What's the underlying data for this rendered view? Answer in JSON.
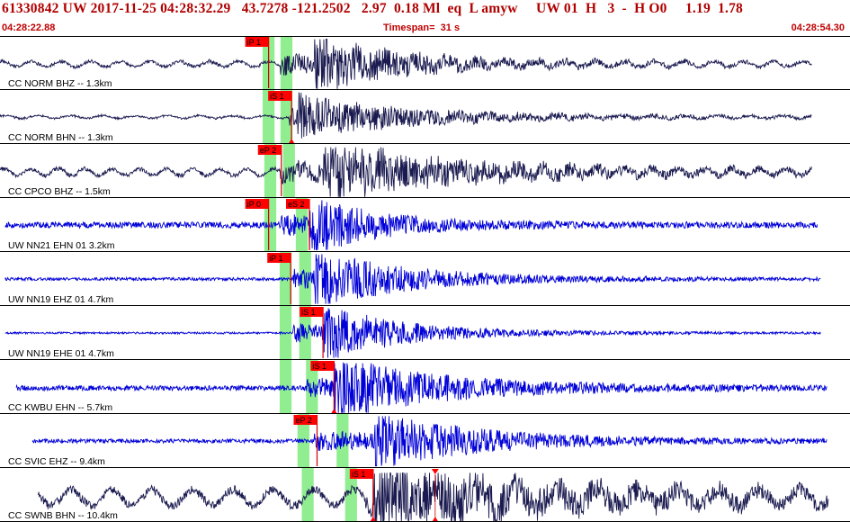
{
  "header": {
    "title": "61330842 UW 2017-11-25 04:28:32.29   43.7278 -121.2502   2.97  0.18 Ml  eq  L amyw     UW 01  H   3  -  H O0     1.19  1.78",
    "start_time": "04:28:22.88",
    "timespan": "Timespan=  31 s",
    "end_time": "04:28:54.30"
  },
  "colors": {
    "trace_dark": "#1a1a50",
    "trace_blue": "#0000d8",
    "pick_flag": "#ff0000",
    "pick_line": "#cc0000",
    "window": "#90ee90",
    "title_text": "#b00000"
  },
  "traces": [
    {
      "label": "CC NORM BHZ -- 1.3km",
      "color": "dark",
      "picks": [
        {
          "label": "iP 1",
          "pos": 0.316
        }
      ],
      "windows": [
        [
          0.309,
          0.323
        ],
        [
          0.33,
          0.344
        ]
      ],
      "seed": 11,
      "start": 0.0,
      "end": 0.955,
      "onset": 0.33,
      "s_onset": 0.37,
      "noise": 0.12,
      "amp": 0.9,
      "decay": 0.012,
      "period": 55,
      "mid": 0.52
    },
    {
      "label": "CC NORM BHN -- 1.3km",
      "color": "dark",
      "picks": [
        {
          "label": "iS 1",
          "pos": 0.343,
          "marker": true
        }
      ],
      "windows": [
        [
          0.309,
          0.323
        ],
        [
          0.33,
          0.344
        ]
      ],
      "seed": 23,
      "start": 0.0,
      "end": 0.955,
      "onset": 0.34,
      "s_onset": 0.35,
      "noise": 0.06,
      "amp": 0.6,
      "decay": 0.01,
      "period": 60,
      "mid": 0.5
    },
    {
      "label": "CC CPCO BHZ -- 1.5km",
      "color": "dark",
      "picks": [
        {
          "label": "eP 2",
          "pos": 0.331
        }
      ],
      "windows": [
        [
          0.311,
          0.325
        ],
        [
          0.333,
          0.347
        ]
      ],
      "seed": 37,
      "start": 0.0,
      "end": 0.955,
      "onset": 0.33,
      "s_onset": 0.38,
      "noise": 0.15,
      "amp": 0.95,
      "decay": 0.008,
      "period": 50,
      "mid": 0.52
    },
    {
      "label": "UW NN21 EHN 01 3.2km",
      "color": "blue",
      "picks": [
        {
          "label": "iP 0",
          "pos": 0.316
        },
        {
          "label": "eS 2",
          "pos": 0.364
        }
      ],
      "windows": [
        [
          0.311,
          0.325
        ],
        [
          0.348,
          0.362
        ]
      ],
      "seed": 41,
      "start": 0.006,
      "end": 0.962,
      "onset": 0.33,
      "s_onset": 0.364,
      "noise": 0.12,
      "amp": 1.0,
      "decay": 0.016,
      "period": 0,
      "mid": 0.5
    },
    {
      "label": "UW NN19 EHZ 01 4.7km",
      "color": "blue",
      "picks": [
        {
          "label": "iP 1",
          "pos": 0.342
        }
      ],
      "windows": [
        [
          0.329,
          0.343
        ],
        [
          0.352,
          0.366
        ]
      ],
      "seed": 53,
      "start": 0.006,
      "end": 0.966,
      "onset": 0.345,
      "s_onset": 0.37,
      "noise": 0.06,
      "amp": 1.0,
      "decay": 0.012,
      "period": 0,
      "mid": 0.5
    },
    {
      "label": "UW NN19 EHE 01 4.7km",
      "color": "blue",
      "picks": [
        {
          "label": "iS 1",
          "pos": 0.38
        }
      ],
      "windows": [
        [
          0.329,
          0.343
        ],
        [
          0.352,
          0.366
        ]
      ],
      "seed": 67,
      "start": 0.006,
      "end": 0.966,
      "onset": 0.345,
      "s_onset": 0.38,
      "noise": 0.04,
      "amp": 1.0,
      "decay": 0.014,
      "period": 0,
      "mid": 0.5
    },
    {
      "label": "CC KWBU EHN -- 5.7km",
      "color": "blue",
      "picks": [
        {
          "label": "iS 1",
          "pos": 0.393,
          "marker": true
        }
      ],
      "windows": [
        [
          0.329,
          0.343
        ],
        [
          0.36,
          0.374
        ]
      ],
      "seed": 79,
      "start": 0.019,
      "end": 0.973,
      "onset": 0.36,
      "s_onset": 0.393,
      "noise": 0.1,
      "amp": 1.0,
      "decay": 0.01,
      "period": 0,
      "mid": 0.52
    },
    {
      "label": "CC SVIC EHZ -- 9.4km",
      "color": "blue",
      "picks": [
        {
          "label": "eP 2",
          "pos": 0.373
        }
      ],
      "windows": [
        [
          0.35,
          0.364
        ],
        [
          0.396,
          0.41
        ]
      ],
      "seed": 83,
      "start": 0.038,
      "end": 0.973,
      "onset": 0.37,
      "s_onset": 0.44,
      "noise": 0.08,
      "amp": 0.95,
      "decay": 0.01,
      "period": 0,
      "mid": 0.5
    },
    {
      "label": "CC SWNB BHN -- 10.4km",
      "color": "dark",
      "picks": [
        {
          "label": "iS 1",
          "pos": 0.439,
          "marker": true,
          "top_marker": 0.512
        }
      ],
      "windows": [
        [
          0.355,
          0.369
        ],
        [
          0.406,
          0.42
        ]
      ],
      "seed": 97,
      "start": 0.045,
      "end": 0.975,
      "onset": 0.43,
      "s_onset": 0.44,
      "noise": 0.35,
      "amp": 0.9,
      "decay": 0.006,
      "period": 75,
      "mid": 0.55
    }
  ]
}
